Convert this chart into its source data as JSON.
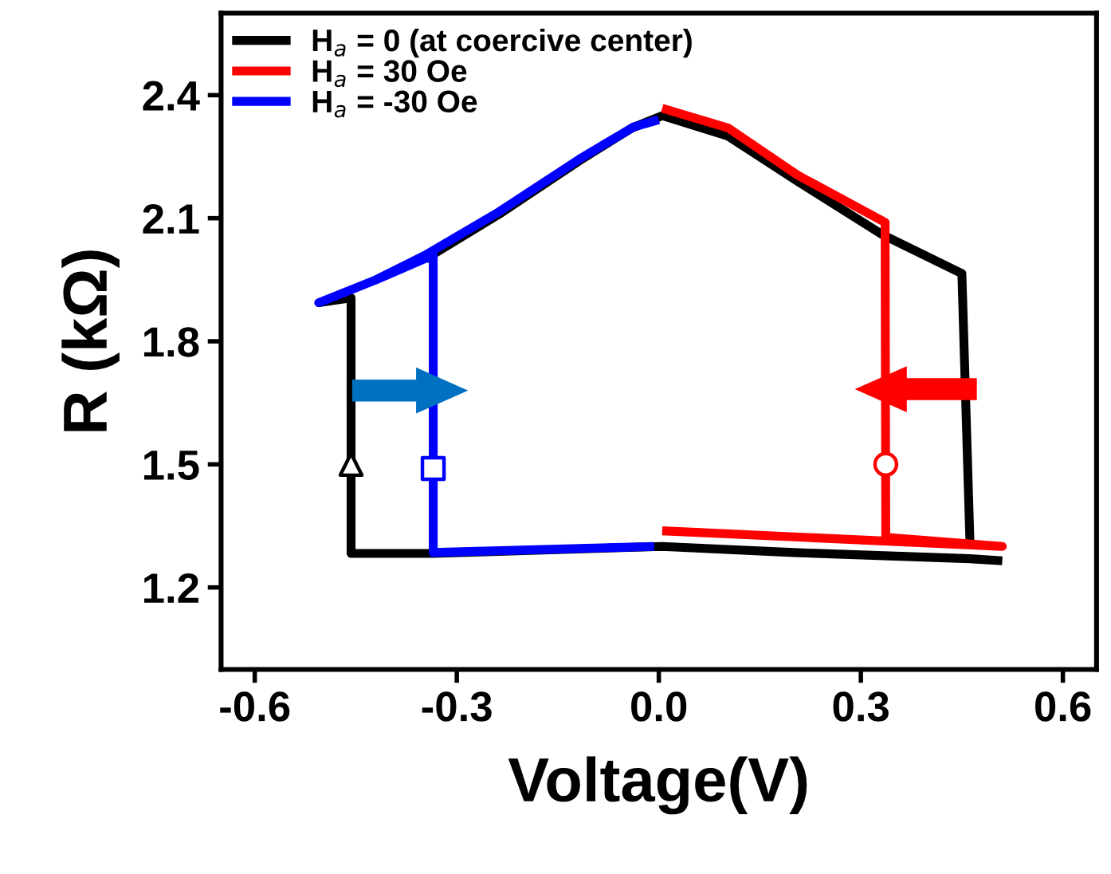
{
  "chart_data": {
    "type": "line",
    "xlabel": "Voltage(V)",
    "ylabel": "R (kΩ)",
    "xlim": [
      -0.65,
      0.65
    ],
    "xticks": [
      {
        "value": -0.6,
        "label": "-0.6"
      },
      {
        "value": -0.3,
        "label": "-0.3"
      },
      {
        "value": 0.0,
        "label": "0.0"
      },
      {
        "value": 0.3,
        "label": "0.3"
      },
      {
        "value": 0.6,
        "label": "0.6"
      }
    ],
    "ylim": [
      1.0,
      2.6
    ],
    "yticks": [
      1.2,
      1.5,
      1.8,
      2.1,
      2.4
    ],
    "grid": false,
    "legend": "top left",
    "marker": "none",
    "line_style": "solid",
    "series": [
      {
        "name": "H$_{a}$ = 0 (at coercive center)",
        "color": "#000000",
        "x": [
          0.51,
          0.462,
          0.2,
          0.005,
          -0.335,
          -0.457,
          -0.457,
          -0.505,
          -0.42,
          -0.347,
          -0.237,
          -0.118,
          -0.04,
          0.005,
          0.103,
          0.206,
          0.332,
          0.45,
          0.462
        ],
        "values": [
          1.265,
          1.27,
          1.285,
          1.3,
          1.283,
          1.283,
          1.906,
          1.894,
          null,
          2.0,
          2.11,
          2.24,
          2.32,
          2.35,
          2.3,
          2.19,
          2.06,
          1.965,
          1.31
        ]
      },
      {
        "name": "H$_{a}$ = 30 Oe",
        "color": "#ff0000",
        "x": [
          0.005,
          0.103,
          0.206,
          0.336,
          0.337,
          0.51,
          0.005
        ],
        "values": [
          2.368,
          2.32,
          2.205,
          2.09,
          1.322,
          1.3,
          1.338
        ]
      },
      {
        "name": "H$_{a}$ = -30 Oe",
        "color": "#0000ff",
        "x": [
          -0.007,
          -0.335,
          -0.335,
          -0.42,
          -0.505,
          -0.42,
          -0.347,
          -0.237,
          -0.118,
          -0.038,
          0.0
        ],
        "values": [
          1.3,
          1.285,
          2.01,
          1.95,
          1.894,
          1.95,
          2.01,
          2.116,
          2.244,
          2.322,
          2.34
        ]
      },
      {
        "type": "scatter",
        "color": "#000000",
        "marker": "triangle",
        "x": [
          -0.457
        ],
        "values": [
          1.5
        ]
      },
      {
        "type": "scatter",
        "color": "#0000ff",
        "marker": "square",
        "x": [
          -0.335
        ],
        "values": [
          1.49
        ]
      },
      {
        "type": "scatter",
        "color": "#ff0000",
        "marker": "circle",
        "x": [
          0.337
        ],
        "values": [
          1.5
        ]
      }
    ]
  }
}
